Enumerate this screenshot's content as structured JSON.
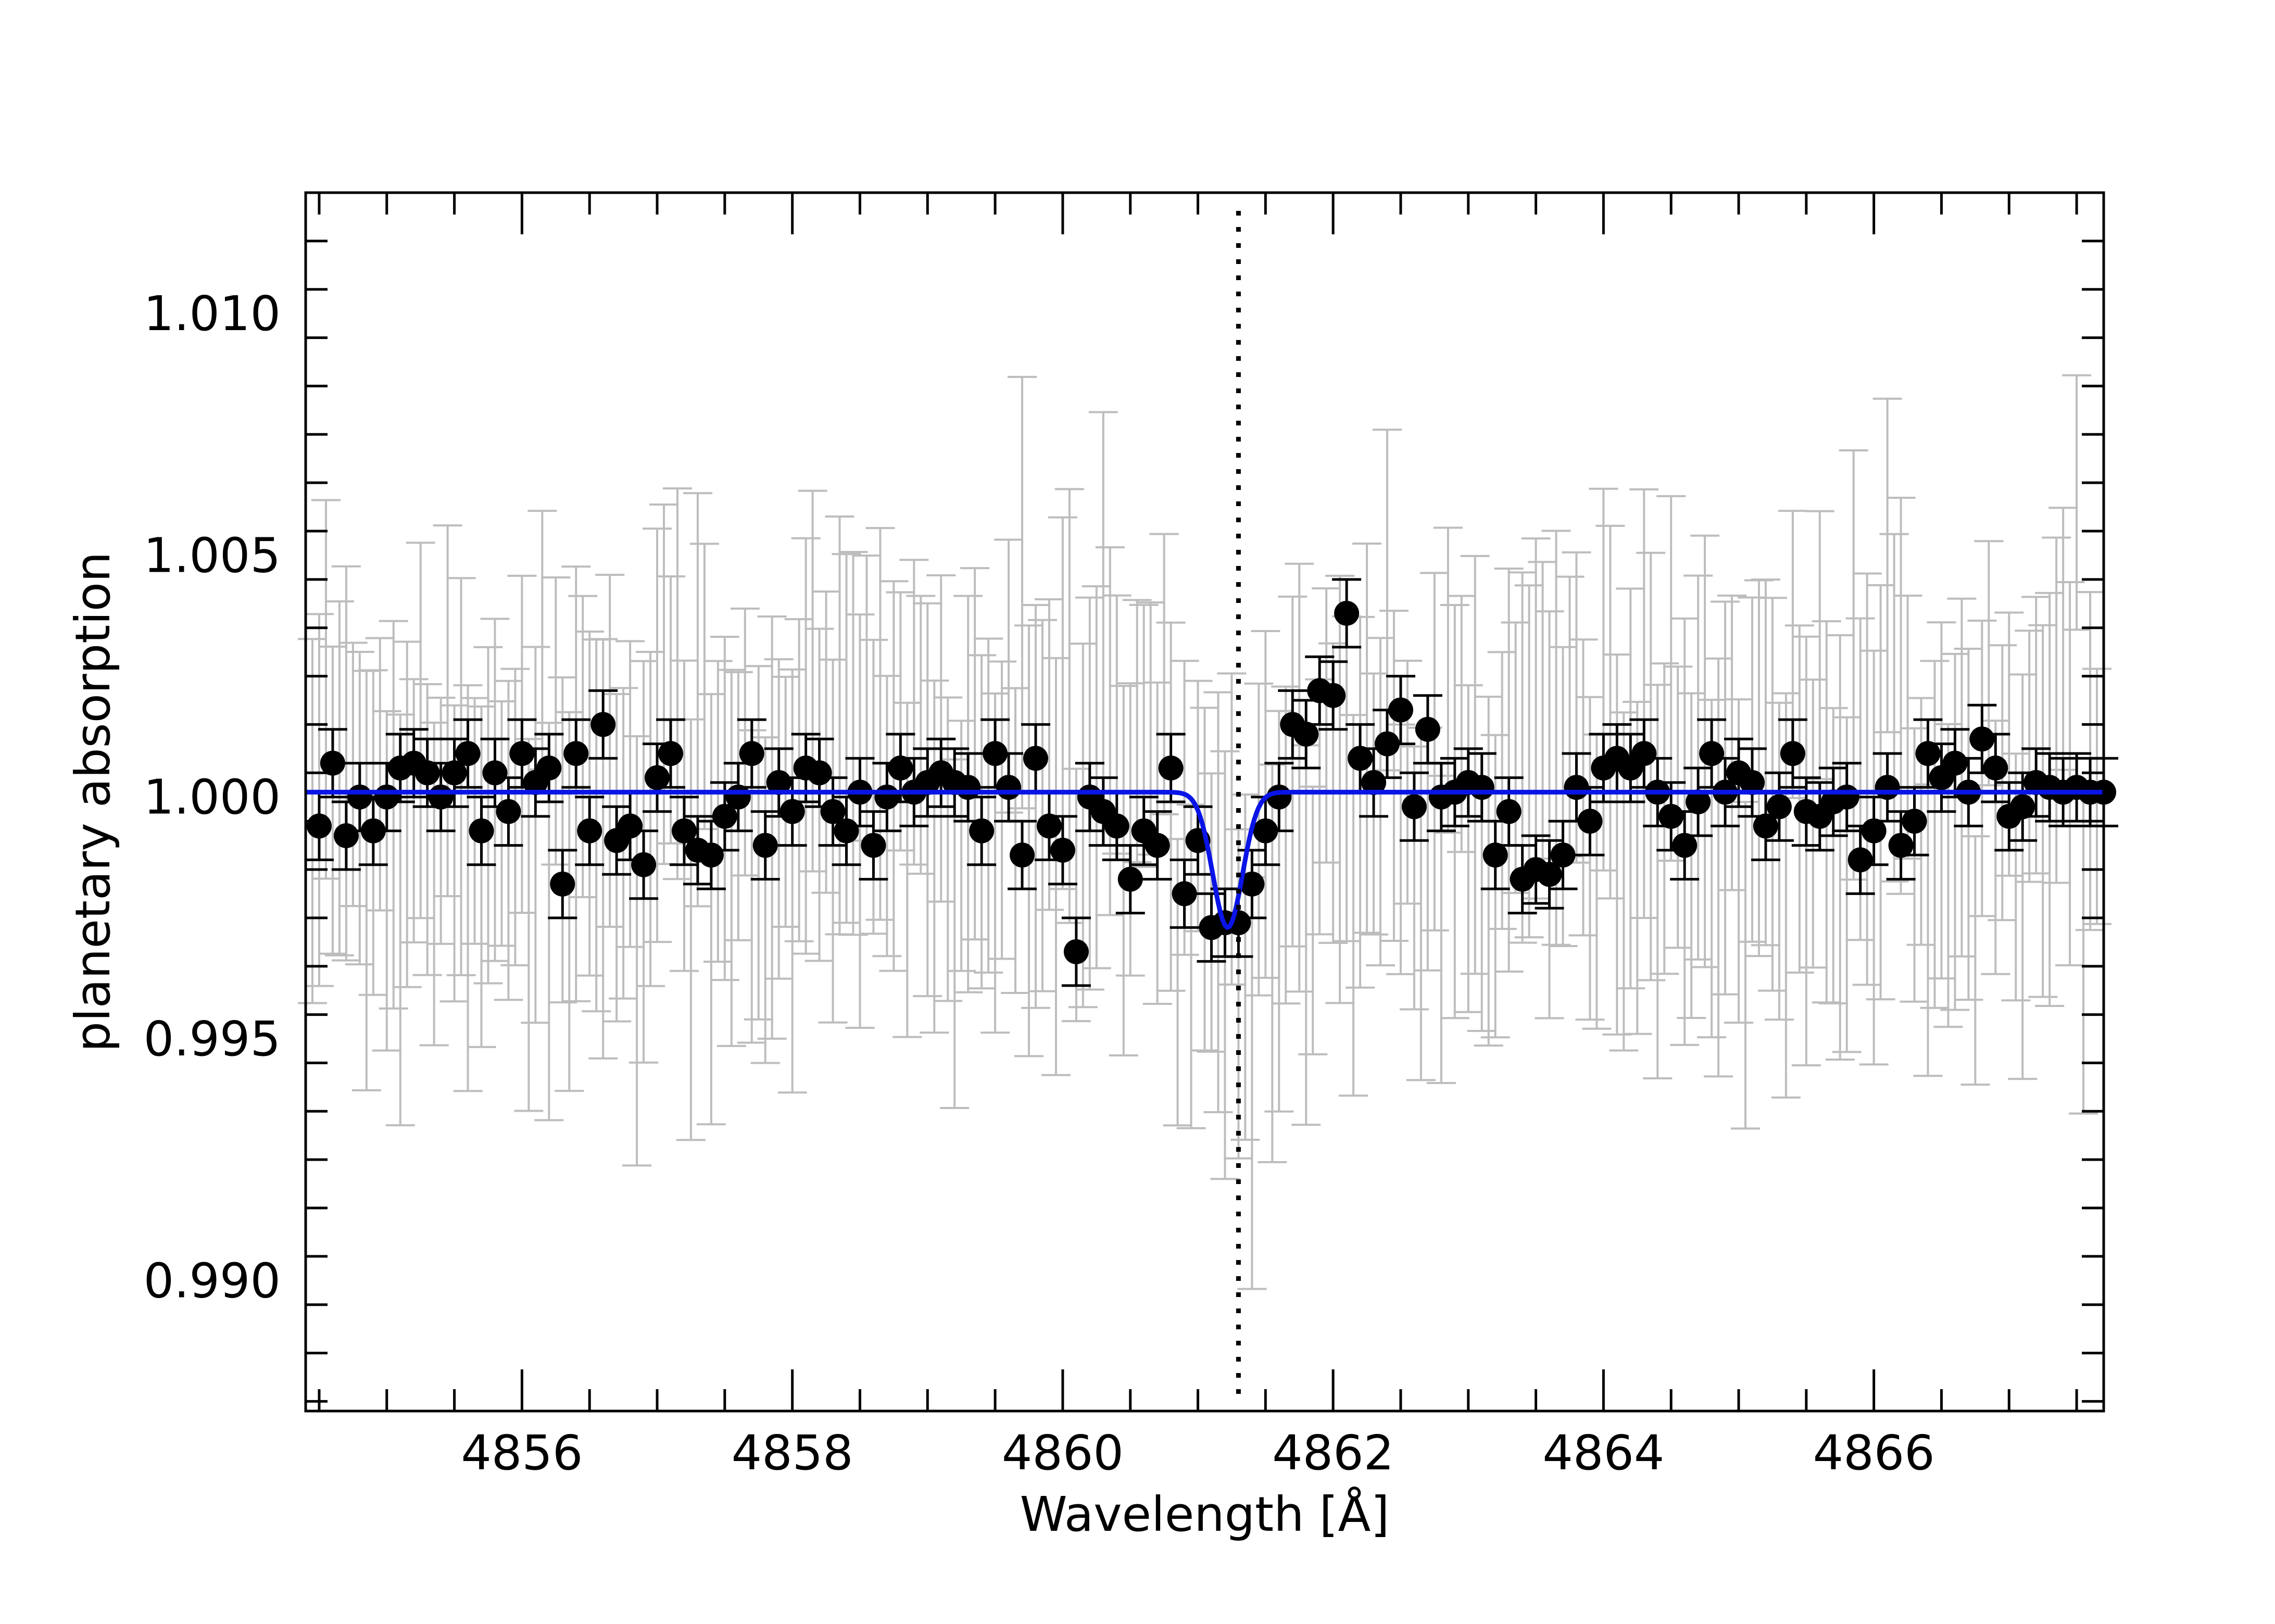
{
  "chart_data": {
    "type": "scatter",
    "xlabel": "Wavelength [Å]",
    "ylabel": "planetary absorption",
    "xlim": [
      4854.4,
      4867.7
    ],
    "ylim": [
      0.9873,
      1.0125
    ],
    "x_ticks": [
      4856,
      4858,
      4860,
      4862,
      4864,
      4866
    ],
    "x_tick_labels": [
      "4856",
      "4858",
      "4860",
      "4862",
      "4864",
      "4866"
    ],
    "y_ticks": [
      0.99,
      0.995,
      1.0,
      1.005,
      1.01
    ],
    "y_tick_labels": [
      "0.990",
      "0.995",
      "1.000",
      "1.005",
      "1.010"
    ],
    "grid": false,
    "reference_line_x": 4861.3,
    "colors": {
      "unbinned": "#bdbdbd",
      "binned": "#000000",
      "model": "#0a14e6",
      "reference": "#000000"
    },
    "binned_series": {
      "x": [
        4854.5,
        4854.6,
        4854.7,
        4854.8,
        4854.9,
        4855.0,
        4855.1,
        4855.2,
        4855.3,
        4855.4,
        4855.5,
        4855.6,
        4855.7,
        4855.8,
        4855.9,
        4856.0,
        4856.1,
        4856.2,
        4856.3,
        4856.4,
        4856.5,
        4856.6,
        4856.7,
        4856.8,
        4856.9,
        4857.0,
        4857.1,
        4857.2,
        4857.3,
        4857.4,
        4857.5,
        4857.6,
        4857.7,
        4857.8,
        4857.9,
        4858.0,
        4858.1,
        4858.2,
        4858.3,
        4858.4,
        4858.5,
        4858.6,
        4858.7,
        4858.8,
        4858.9,
        4859.0,
        4859.1,
        4859.2,
        4859.3,
        4859.4,
        4859.5,
        4859.6,
        4859.7,
        4859.8,
        4859.9,
        4860.0,
        4860.1,
        4860.2,
        4860.3,
        4860.4,
        4860.5,
        4860.6,
        4860.7,
        4860.8,
        4860.9,
        4861.0,
        4861.1,
        4861.2,
        4861.3,
        4861.4,
        4861.5,
        4861.6,
        4861.7,
        4861.8,
        4861.9,
        4862.0,
        4862.1,
        4862.2,
        4862.3,
        4862.4,
        4862.5,
        4862.6,
        4862.7,
        4862.8,
        4862.9,
        4863.0,
        4863.1,
        4863.2,
        4863.3,
        4863.4,
        4863.5,
        4863.6,
        4863.7,
        4863.8,
        4863.9,
        4864.0,
        4864.1,
        4864.2,
        4864.3,
        4864.4,
        4864.5,
        4864.6,
        4864.7,
        4864.8,
        4864.9,
        4865.0,
        4865.1,
        4865.2,
        4865.3,
        4865.4,
        4865.5,
        4865.6,
        4865.7,
        4865.8,
        4865.9,
        4866.0,
        4866.1,
        4866.2,
        4866.3,
        4866.4,
        4866.5,
        4866.6,
        4866.7,
        4866.8,
        4866.9,
        4867.0,
        4867.1,
        4867.2,
        4867.3,
        4867.4,
        4867.5,
        4867.6,
        4867.7
      ],
      "y": [
        0.9994,
        1.0007,
        0.9992,
        1.0,
        0.9993,
        1.0,
        1.0006,
        1.0007,
        1.0005,
        1.0,
        1.0005,
        1.0009,
        0.9993,
        1.0005,
        0.9997,
        1.0009,
        1.0003,
        1.0006,
        0.9982,
        1.0009,
        0.9993,
        1.0015,
        0.9991,
        0.9994,
        0.9986,
        1.0004,
        1.0009,
        0.9993,
        0.9989,
        0.9988,
        0.9996,
        1.0,
        1.0009,
        0.999,
        1.0003,
        0.9997,
        1.0006,
        1.0005,
        0.9997,
        0.9993,
        1.0001,
        0.999,
        1.0,
        1.0006,
        1.0001,
        1.0003,
        1.0005,
        1.0003,
        1.0002,
        0.9993,
        1.0009,
        1.0002,
        0.9988,
        1.0008,
        0.9994,
        0.9989,
        0.9968,
        1.0,
        0.9997,
        0.9994,
        0.9983,
        0.9993,
        0.999,
        1.0006,
        0.998,
        0.9991,
        0.9973,
        0.9974,
        0.9974,
        0.9982,
        0.9993,
        1.0,
        1.0015,
        1.0013,
        1.0022,
        1.0021,
        1.0038,
        1.0008,
        1.0003,
        1.0011,
        1.0018,
        0.9998,
        1.0014,
        1.0,
        1.0001,
        1.0003,
        1.0002,
        0.9988,
        0.9997,
        0.9983,
        0.9985,
        0.9984,
        0.9988,
        1.0002,
        0.9995,
        1.0006,
        1.0008,
        1.0006,
        1.0009,
        1.0001,
        0.9996,
        0.999,
        0.9999,
        1.0009,
        1.0001,
        1.0005,
        1.0003,
        0.9994,
        0.9998,
        1.0009,
        0.9997,
        0.9996,
        0.9999,
        1.0,
        0.9987,
        0.9993,
        1.0002,
        0.999,
        0.9995,
        1.0009,
        1.0004,
        1.0007,
        1.0001,
        1.0012,
        1.0006,
        0.9996,
        0.9998,
        1.0003,
        1.0002,
        1.0001,
        1.0002,
        1.0001,
        1.0001
      ],
      "err": [
        0.0007,
        0.0007,
        0.0007,
        0.0007,
        0.0007,
        0.0007,
        0.0007,
        0.0007,
        0.0007,
        0.0007,
        0.0007,
        0.0007,
        0.0007,
        0.0007,
        0.0007,
        0.0007,
        0.0007,
        0.0007,
        0.0007,
        0.0007,
        0.0007,
        0.0007,
        0.0007,
        0.0007,
        0.0007,
        0.0007,
        0.0007,
        0.0007,
        0.0007,
        0.0007,
        0.0007,
        0.0007,
        0.0007,
        0.0007,
        0.0007,
        0.0007,
        0.0007,
        0.0007,
        0.0007,
        0.0007,
        0.0007,
        0.0007,
        0.0007,
        0.0007,
        0.0007,
        0.0007,
        0.0007,
        0.0007,
        0.0007,
        0.0007,
        0.0007,
        0.0007,
        0.0007,
        0.0007,
        0.0007,
        0.0007,
        0.0007,
        0.0007,
        0.0007,
        0.0007,
        0.0007,
        0.0007,
        0.0007,
        0.0007,
        0.0007,
        0.0007,
        0.0007,
        0.0007,
        0.0007,
        0.0007,
        0.0007,
        0.0007,
        0.0007,
        0.0007,
        0.0007,
        0.0007,
        0.0007,
        0.0007,
        0.0007,
        0.0007,
        0.0007,
        0.0007,
        0.0007,
        0.0007,
        0.0007,
        0.0007,
        0.0007,
        0.0007,
        0.0007,
        0.0007,
        0.0007,
        0.0007,
        0.0007,
        0.0007,
        0.0007,
        0.0007,
        0.0007,
        0.0007,
        0.0007,
        0.0007,
        0.0007,
        0.0007,
        0.0007,
        0.0007,
        0.0007,
        0.0007,
        0.0007,
        0.0007,
        0.0007,
        0.0007,
        0.0007,
        0.0007,
        0.0007,
        0.0007,
        0.0007,
        0.0007,
        0.0007,
        0.0007,
        0.0007,
        0.0007,
        0.0007,
        0.0007,
        0.0007,
        0.0007,
        0.0007,
        0.0007,
        0.0007,
        0.0007,
        0.0007,
        0.0007,
        0.0007,
        0.0007,
        0.0007
      ]
    },
    "unbinned_series": {
      "x_start": 4854.45,
      "x_step": 0.05,
      "count": 265,
      "y_mean": 1.0,
      "y_scatter": 0.0016,
      "err_min": 0.0025,
      "err_max": 0.0045,
      "dip_center": 4861.2,
      "dip_depth": 0.0028
    },
    "model_line": {
      "continuum": 1.0001,
      "center": 4861.22,
      "depth": 0.0028,
      "sigma": 0.11,
      "x_min": 4854.4,
      "x_max": 4867.7
    }
  }
}
